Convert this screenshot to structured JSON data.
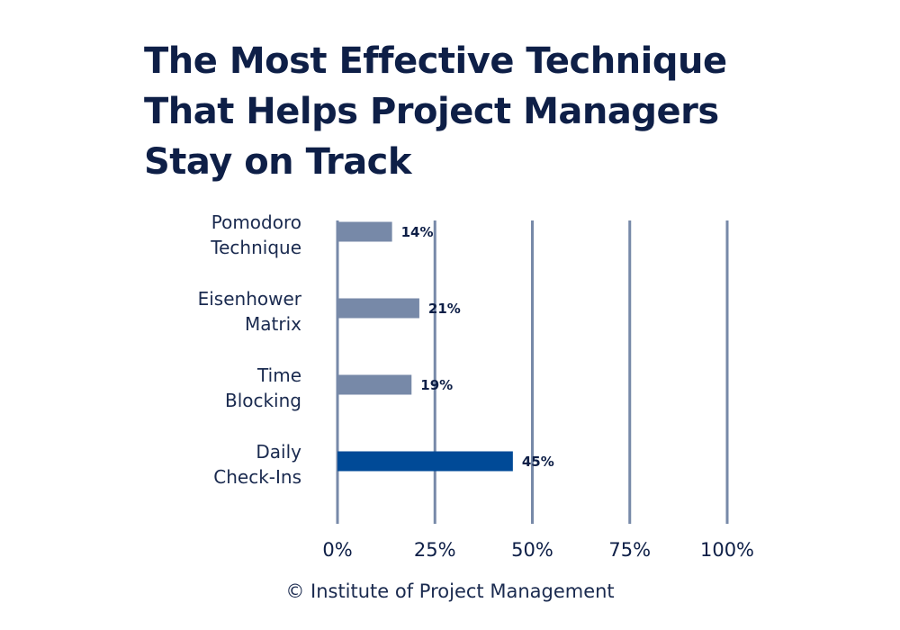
{
  "chart_data": {
    "type": "bar",
    "orientation": "horizontal",
    "title": "The Most Effective Technique That Helps Project Managers Stay on Track",
    "categories": [
      "Pomodoro\nTechnique",
      "Eisenhower\nMatrix",
      "Time\nBlocking",
      "Daily\nCheck-Ins"
    ],
    "values": [
      14,
      21,
      19,
      45
    ],
    "value_labels": [
      "14%",
      "21%",
      "19%",
      "45%"
    ],
    "colors": [
      "#7789a8",
      "#7789a8",
      "#7789a8",
      "#004a97"
    ],
    "xlim": [
      0,
      100
    ],
    "xticks": [
      {
        "value": 0,
        "label": "0%"
      },
      {
        "value": 25,
        "label": "25%"
      },
      {
        "value": 50,
        "label": "50%"
      },
      {
        "value": 75,
        "label": "75%"
      },
      {
        "value": 100,
        "label": "100%"
      }
    ],
    "grid": true,
    "source": "© Institute of Project Management"
  }
}
